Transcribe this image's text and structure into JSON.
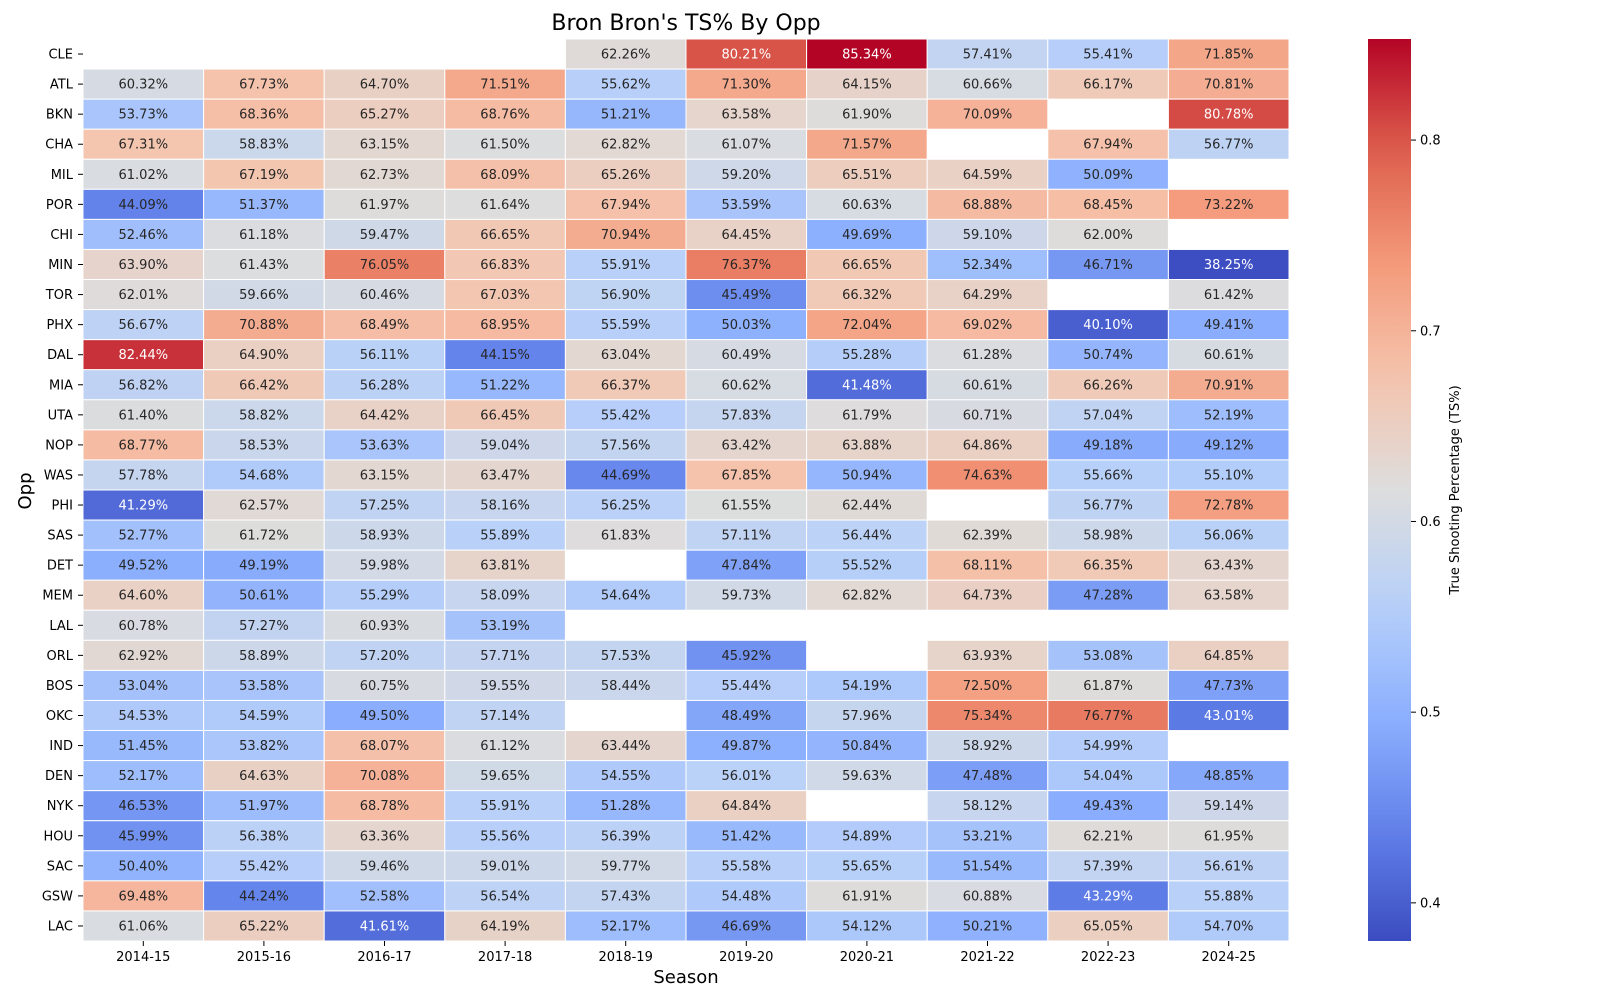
{
  "chart_data": {
    "type": "heatmap",
    "title": "Bron Bron's TS% By Opp",
    "xlabel": "Season",
    "ylabel": "Opp",
    "colorbar_label": "True Shooting Percentage (TS%)",
    "colormap": "coolwarm",
    "color_range": [
      0.38,
      0.853
    ],
    "colorbar_ticks": [
      0.4,
      0.5,
      0.6,
      0.7,
      0.8
    ],
    "colorbar_tick_labels": [
      "0.4",
      "0.5",
      "0.6",
      "0.7",
      "0.8"
    ],
    "x_categories": [
      "2014-15",
      "2015-16",
      "2016-17",
      "2017-18",
      "2018-19",
      "2019-20",
      "2020-21",
      "2021-22",
      "2022-23",
      "2024-25"
    ],
    "y_categories": [
      "CLE",
      "ATL",
      "BKN",
      "CHA",
      "MIL",
      "POR",
      "CHI",
      "MIN",
      "TOR",
      "PHX",
      "DAL",
      "MIA",
      "UTA",
      "NOP",
      "WAS",
      "PHI",
      "SAS",
      "DET",
      "MEM",
      "LAL",
      "ORL",
      "BOS",
      "OKC",
      "IND",
      "DEN",
      "NYK",
      "HOU",
      "SAC",
      "GSW",
      "LAC"
    ],
    "values": [
      [
        null,
        null,
        null,
        null,
        0.6226,
        0.8021,
        0.8534,
        0.5741,
        0.5541,
        0.7185
      ],
      [
        0.6032,
        0.6773,
        0.647,
        0.7151,
        0.5562,
        0.713,
        0.6415,
        0.6066,
        0.6617,
        0.7081
      ],
      [
        0.5373,
        0.6836,
        0.6527,
        0.6876,
        0.5121,
        0.6358,
        0.619,
        0.7009,
        null,
        0.8078
      ],
      [
        0.6731,
        0.5883,
        0.6315,
        0.615,
        0.6282,
        0.6107,
        0.7157,
        null,
        0.6794,
        0.5677
      ],
      [
        0.6102,
        0.6719,
        0.6273,
        0.6809,
        0.6526,
        0.592,
        0.6551,
        0.6459,
        0.5009,
        null
      ],
      [
        0.4409,
        0.5137,
        0.6197,
        0.6164,
        0.6794,
        0.5359,
        0.6063,
        0.6888,
        0.6845,
        0.7322
      ],
      [
        0.5246,
        0.6118,
        0.5947,
        0.6665,
        0.7094,
        0.6445,
        0.4969,
        0.591,
        0.62,
        null
      ],
      [
        0.639,
        0.6143,
        0.7605,
        0.6683,
        0.5591,
        0.7637,
        0.6665,
        0.5234,
        0.4671,
        0.3825
      ],
      [
        0.6201,
        0.5966,
        0.6046,
        0.6703,
        0.569,
        0.4549,
        0.6632,
        0.6429,
        null,
        0.6142
      ],
      [
        0.5667,
        0.7088,
        0.6849,
        0.6895,
        0.5559,
        0.5003,
        0.7204,
        0.6902,
        0.401,
        0.4941
      ],
      [
        0.8244,
        0.649,
        0.5611,
        0.4415,
        0.6304,
        0.6049,
        0.5528,
        0.6128,
        0.5074,
        0.6061
      ],
      [
        0.5682,
        0.6642,
        0.5628,
        0.5122,
        0.6637,
        0.6062,
        0.4148,
        0.6061,
        0.6626,
        0.7091
      ],
      [
        0.614,
        0.5882,
        0.6442,
        0.6645,
        0.5542,
        0.5783,
        0.6179,
        0.6071,
        0.5704,
        0.5219
      ],
      [
        0.6877,
        0.5853,
        0.5363,
        0.5904,
        0.5756,
        0.6342,
        0.6388,
        0.6486,
        0.4918,
        0.4912
      ],
      [
        0.5778,
        0.5468,
        0.6315,
        0.6347,
        0.4469,
        0.6785,
        0.5094,
        0.7463,
        0.5566,
        0.551
      ],
      [
        0.4129,
        0.6257,
        0.5725,
        0.5816,
        0.5625,
        0.6155,
        0.6244,
        null,
        0.5677,
        0.7278
      ],
      [
        0.5277,
        0.6172,
        0.5893,
        0.5589,
        0.6183,
        0.5711,
        0.5644,
        0.6239,
        0.5898,
        0.5606
      ],
      [
        0.4952,
        0.4919,
        0.5998,
        0.6381,
        null,
        0.4784,
        0.5552,
        0.6811,
        0.6635,
        0.6343
      ],
      [
        0.646,
        0.5061,
        0.5529,
        0.5809,
        0.5464,
        0.5973,
        0.6282,
        0.6473,
        0.4728,
        0.6358
      ],
      [
        0.6078,
        0.5727,
        0.6093,
        0.5319,
        null,
        null,
        null,
        null,
        null,
        null
      ],
      [
        0.6292,
        0.5889,
        0.572,
        0.5771,
        0.5753,
        0.4592,
        null,
        0.6393,
        0.5308,
        0.6485
      ],
      [
        0.5304,
        0.5358,
        0.6075,
        0.5955,
        0.5844,
        0.5544,
        0.5419,
        0.725,
        0.6187,
        0.4773
      ],
      [
        0.5453,
        0.5459,
        0.495,
        0.5714,
        null,
        0.4849,
        0.5796,
        0.7534,
        0.7677,
        0.4301
      ],
      [
        0.5145,
        0.5382,
        0.6807,
        0.6112,
        0.6344,
        0.4987,
        0.5084,
        0.5892,
        0.5499,
        null
      ],
      [
        0.5217,
        0.6463,
        0.7008,
        0.5965,
        0.5455,
        0.5601,
        0.5963,
        0.4748,
        0.5404,
        0.4885
      ],
      [
        0.4653,
        0.5197,
        0.6878,
        0.5591,
        0.5128,
        0.6484,
        null,
        0.5812,
        0.4943,
        0.5914
      ],
      [
        0.4599,
        0.5638,
        0.6336,
        0.5556,
        0.5639,
        0.5142,
        0.5489,
        0.5321,
        0.6221,
        0.6195
      ],
      [
        0.504,
        0.5542,
        0.5946,
        0.5901,
        0.5977,
        0.5558,
        0.5565,
        0.5154,
        0.5739,
        0.5661
      ],
      [
        0.6948,
        0.4424,
        0.5258,
        0.5654,
        0.5743,
        0.5448,
        0.6191,
        0.6088,
        0.4329,
        0.5588
      ],
      [
        0.6106,
        0.6522,
        0.4161,
        0.6419,
        0.5217,
        0.4669,
        0.5412,
        0.5021,
        0.6505,
        0.547
      ]
    ]
  }
}
